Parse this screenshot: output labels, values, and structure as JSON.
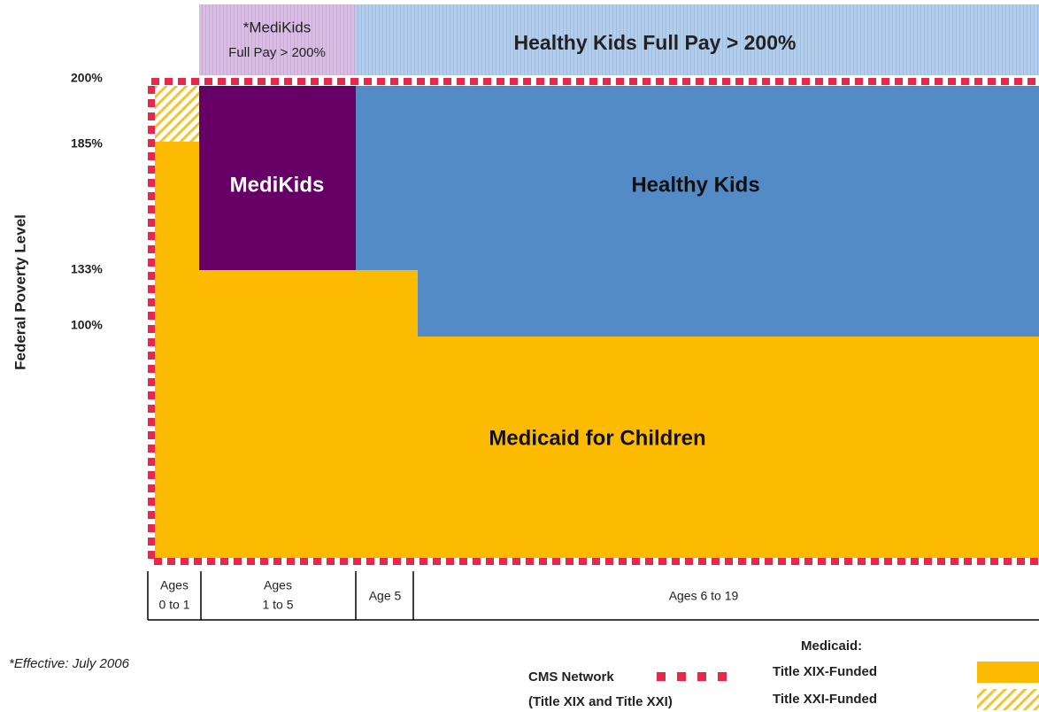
{
  "header": {
    "medikids_full_pay": [
      "*MediKids",
      "Full Pay > 200%"
    ],
    "healthy_kids_full_pay": "Healthy Kids Full Pay > 200%"
  },
  "y_axis": {
    "label": "Federal Poverty Level",
    "ticks": [
      "200%",
      "185%",
      "133%",
      "100%"
    ]
  },
  "regions": {
    "medikids": "MediKids",
    "healthy_kids": "Healthy Kids",
    "medicaid": "Medicaid for Children"
  },
  "age_groups": [
    [
      "Ages",
      "0 to 1"
    ],
    [
      "Ages",
      "1 to 5"
    ],
    [
      "Age 5"
    ],
    [
      "Ages 6 to 19"
    ]
  ],
  "footnote": "*Effective:  July 2006",
  "legend": {
    "cms_network": [
      "CMS Network",
      "(Title XIX and Title XXI)"
    ],
    "medicaid_title": "Medicaid:",
    "title_xix": "Title XIX-Funded",
    "title_xxi": "Title XXI-Funded"
  }
}
